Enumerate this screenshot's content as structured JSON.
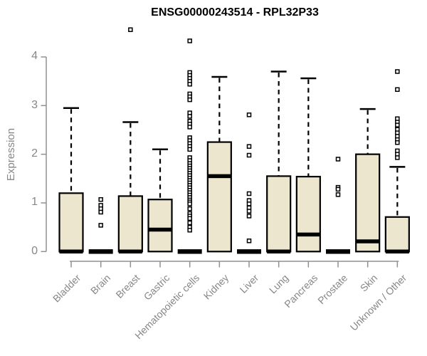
{
  "page": {
    "background": "#ffffff"
  },
  "chart_data": {
    "type": "boxplot",
    "title": "ENSG00000243514 - RPL32P33",
    "ylabel": "Expression",
    "xlabel": "",
    "ylim": [
      0,
      4
    ],
    "yticks": [
      0,
      1,
      2,
      3,
      4
    ],
    "grid": false,
    "legend": false,
    "categories": [
      "Bladder",
      "Brain",
      "Breast",
      "Gastric",
      "Hematopoietic cells",
      "Kidney",
      "Liver",
      "Lung",
      "Pancreas",
      "Prostate",
      "Skin",
      "Unknown / Other"
    ],
    "series": [
      {
        "name": "Bladder",
        "q1": 0,
        "median": 0,
        "q3": 1.2,
        "whisker_low": 0,
        "whisker_high": 2.95,
        "outliers": []
      },
      {
        "name": "Brain",
        "q1": 0,
        "median": 0,
        "q3": 0,
        "whisker_low": 0,
        "whisker_high": 0,
        "outliers": [
          1.07,
          0.95,
          0.88,
          0.81,
          0.54
        ]
      },
      {
        "name": "Breast",
        "q1": 0,
        "median": 0,
        "q3": 1.14,
        "whisker_low": 0,
        "whisker_high": 2.66,
        "outliers": [
          4.56
        ]
      },
      {
        "name": "Gastric",
        "q1": 0,
        "median": 0.45,
        "q3": 1.07,
        "whisker_low": 0,
        "whisker_high": 2.1,
        "outliers": []
      },
      {
        "name": "Hematopoietic cells",
        "q1": 0,
        "median": 0,
        "q3": 0,
        "whisker_low": 0,
        "whisker_high": 0,
        "outliers": [
          4.33,
          3.68,
          3.62,
          3.56,
          3.5,
          3.44,
          3.24,
          3.18,
          3.12,
          2.85,
          2.78,
          2.68,
          2.62,
          2.56,
          2.34,
          2.28,
          2.22,
          2.16,
          2.1,
          1.93,
          1.87,
          1.81,
          1.76,
          1.71,
          1.66,
          1.61,
          1.56,
          1.51,
          1.46,
          1.41,
          1.36,
          1.31,
          1.26,
          1.21,
          1.16,
          1.11,
          1.06,
          1.02,
          0.98,
          0.88,
          0.78,
          0.73,
          0.68,
          0.59,
          0.5,
          0.44
        ]
      },
      {
        "name": "Kidney",
        "q1": 0,
        "median": 1.55,
        "q3": 2.25,
        "whisker_low": 0,
        "whisker_high": 3.59,
        "outliers": []
      },
      {
        "name": "Liver",
        "q1": 0,
        "median": 0,
        "q3": 0,
        "whisker_low": 0,
        "whisker_high": 0,
        "outliers": [
          2.81,
          2.16,
          1.98,
          1.19,
          1.05,
          0.98,
          0.9,
          0.83,
          0.73,
          0.22
        ]
      },
      {
        "name": "Lung",
        "q1": 0,
        "median": 0,
        "q3": 1.55,
        "whisker_low": 0,
        "whisker_high": 3.7,
        "outliers": []
      },
      {
        "name": "Pancreas",
        "q1": 0,
        "median": 0.35,
        "q3": 1.54,
        "whisker_low": 0,
        "whisker_high": 3.56,
        "outliers": []
      },
      {
        "name": "Prostate",
        "q1": 0,
        "median": 0,
        "q3": 0,
        "whisker_low": 0,
        "whisker_high": 0,
        "outliers": [
          1.9,
          1.32,
          1.28,
          1.17
        ]
      },
      {
        "name": "Skin",
        "q1": 0,
        "median": 0.21,
        "q3": 2.0,
        "whisker_low": 0,
        "whisker_high": 2.93,
        "outliers": []
      },
      {
        "name": "Unknown / Other",
        "q1": 0,
        "median": 0,
        "q3": 0.71,
        "whisker_low": 0,
        "whisker_high": 1.74,
        "outliers": [
          3.7,
          3.33,
          2.73,
          2.66,
          2.6,
          2.51,
          2.44,
          2.37,
          2.3,
          2.24,
          2.07,
          2.0,
          1.93
        ]
      }
    ],
    "colors": {
      "box_fill": "#ede6ce",
      "box_border": "#000000",
      "median": "#000000",
      "whisker": "#000000",
      "outlier_stroke": "#000000",
      "outlier_fill": "#ffffff",
      "axis": "#909090",
      "tick_label": "#878787",
      "title": "#000000"
    }
  }
}
